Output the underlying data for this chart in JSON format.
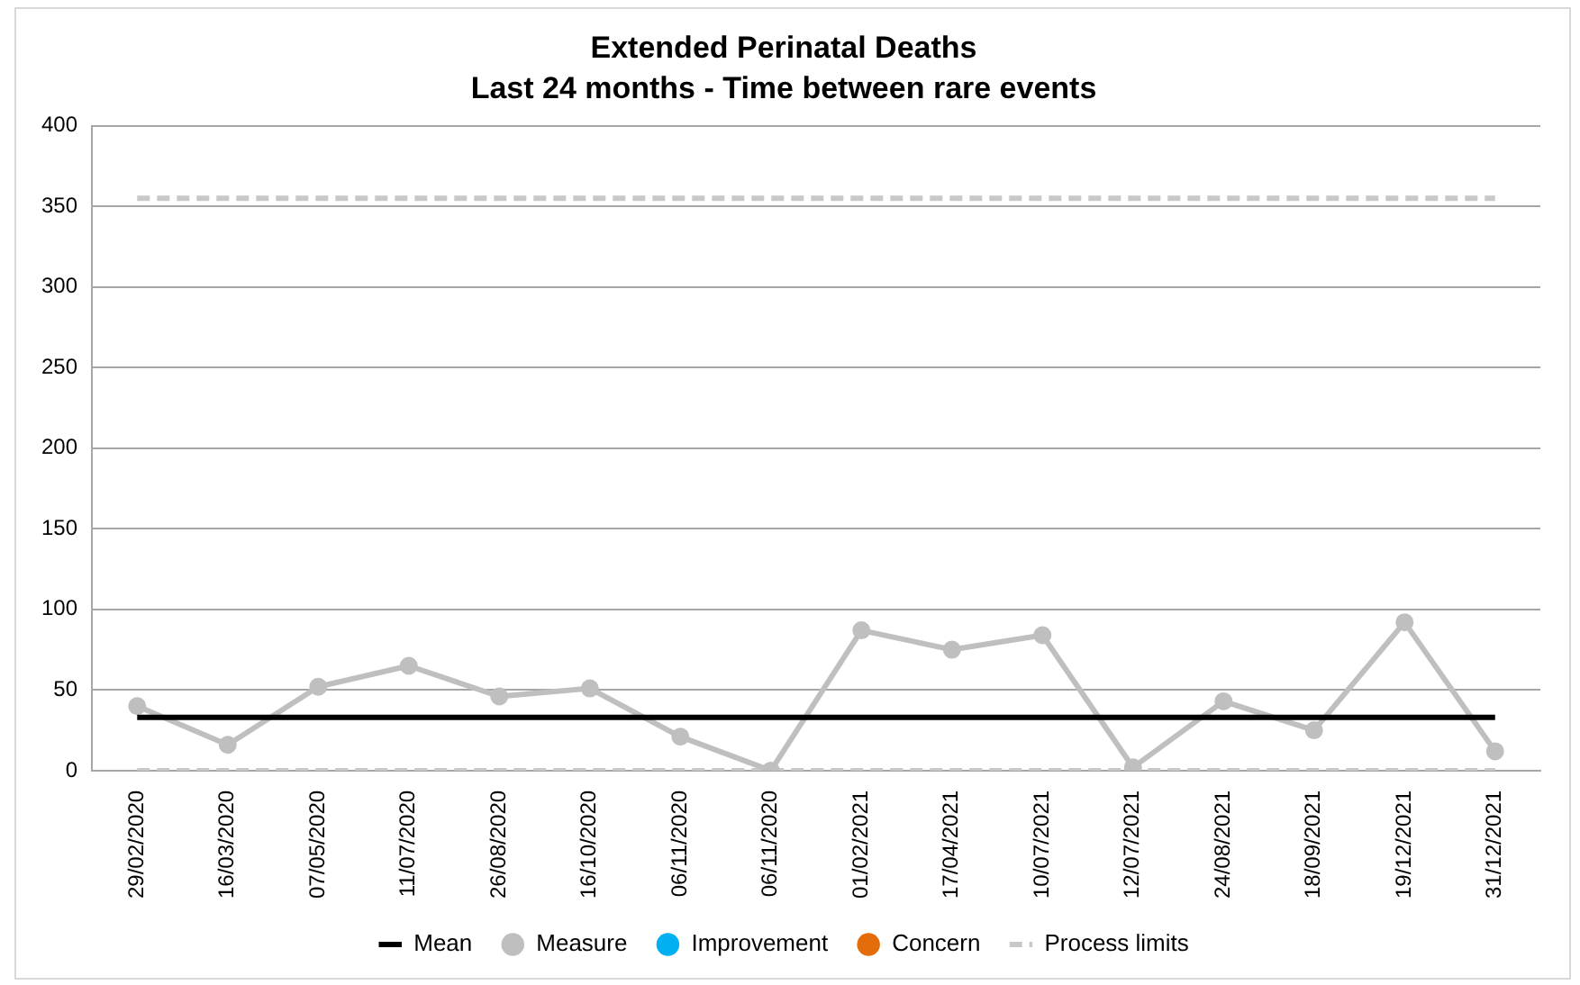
{
  "chart_data": {
    "type": "line",
    "title": "Extended Perinatal Deaths",
    "subtitle": "Last 24 months - Time between rare events",
    "categories": [
      "29/02/2020",
      "16/03/2020",
      "07/05/2020",
      "11/07/2020",
      "26/08/2020",
      "16/10/2020",
      "06/11/2020",
      "06/11/2020",
      "01/02/2021",
      "17/04/2021",
      "10/07/2021",
      "12/07/2021",
      "24/08/2021",
      "18/09/2021",
      "19/12/2021",
      "31/12/2021"
    ],
    "series": [
      {
        "name": "Mean",
        "type": "line",
        "color": "#000000",
        "marker": "none",
        "line_style": "solid",
        "values": [
          33,
          33,
          33,
          33,
          33,
          33,
          33,
          33,
          33,
          33,
          33,
          33,
          33,
          33,
          33,
          33
        ]
      },
      {
        "name": "Measure",
        "type": "line",
        "color": "#bfbfbf",
        "marker": "circle",
        "line_style": "solid",
        "values": [
          40,
          16,
          52,
          65,
          46,
          51,
          21,
          0,
          87,
          75,
          84,
          2,
          43,
          25,
          92,
          12
        ]
      },
      {
        "name": "Improvement",
        "type": "scatter",
        "color": "#00b0f0",
        "marker": "circle",
        "values": [
          null,
          null,
          null,
          null,
          null,
          null,
          null,
          null,
          null,
          null,
          null,
          null,
          null,
          null,
          null,
          null
        ]
      },
      {
        "name": "Concern",
        "type": "scatter",
        "color": "#e46c0a",
        "marker": "circle",
        "values": [
          null,
          null,
          null,
          null,
          null,
          null,
          null,
          null,
          null,
          null,
          null,
          null,
          null,
          null,
          null,
          null
        ]
      },
      {
        "name": "Process limits",
        "type": "line",
        "color": "#c8c8c8",
        "marker": "none",
        "line_style": "dashed",
        "values": [
          355,
          355,
          355,
          355,
          355,
          355,
          355,
          355,
          355,
          355,
          355,
          355,
          355,
          355,
          355,
          355
        ]
      },
      {
        "type": "line",
        "color": "#c8c8c8",
        "marker": "none",
        "line_style": "dashed",
        "values": [
          0,
          0,
          0,
          0,
          0,
          0,
          0,
          0,
          0,
          0,
          0,
          0,
          0,
          0,
          0,
          0
        ]
      }
    ],
    "ylim": [
      0,
      400
    ],
    "yticks": [
      0,
      50,
      100,
      150,
      200,
      250,
      300,
      350,
      400
    ],
    "grid": "y",
    "legend": "bottom"
  }
}
